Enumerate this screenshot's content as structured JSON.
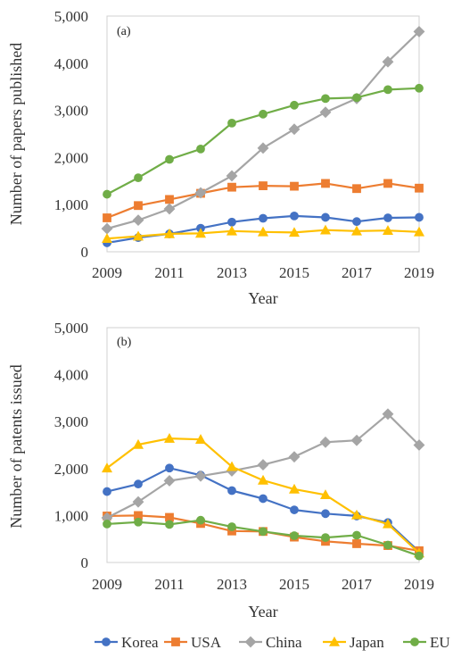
{
  "chart_data": [
    {
      "type": "line",
      "panel_label": "(a)",
      "xlabel": "Year",
      "ylabel": "Number of papers published",
      "x": [
        2009,
        2010,
        2011,
        2012,
        2013,
        2014,
        2015,
        2016,
        2017,
        2018,
        2019
      ],
      "x_ticks": [
        "2009",
        "2011",
        "2013",
        "2015",
        "2017",
        "2019"
      ],
      "ylim": [
        0,
        5000
      ],
      "y_ticks": [
        "0",
        "1,000",
        "2,000",
        "3,000",
        "4,000",
        "5,000"
      ],
      "y_tick_values": [
        0,
        1000,
        2000,
        3000,
        4000,
        5000
      ],
      "grid": false,
      "series": [
        {
          "name": "Korea",
          "color": "#4472C4",
          "marker": "circle",
          "values": [
            190,
            300,
            380,
            500,
            630,
            710,
            760,
            730,
            640,
            720,
            730
          ]
        },
        {
          "name": "USA",
          "color": "#ED7D31",
          "marker": "square",
          "values": [
            720,
            980,
            1110,
            1240,
            1370,
            1400,
            1390,
            1450,
            1340,
            1450,
            1350
          ]
        },
        {
          "name": "China",
          "color": "#A5A5A5",
          "marker": "diamond",
          "values": [
            490,
            670,
            910,
            1250,
            1610,
            2200,
            2600,
            2960,
            3250,
            4030,
            4670
          ]
        },
        {
          "name": "Japan",
          "color": "#FFC000",
          "marker": "triangle",
          "values": [
            280,
            330,
            380,
            390,
            440,
            420,
            410,
            460,
            440,
            450,
            420
          ]
        },
        {
          "name": "EU",
          "color": "#70AD47",
          "marker": "circle",
          "values": [
            1220,
            1570,
            1960,
            2180,
            2730,
            2920,
            3110,
            3250,
            3270,
            3440,
            3470
          ]
        }
      ]
    },
    {
      "type": "line",
      "panel_label": "(b)",
      "xlabel": "Year",
      "ylabel": "Number of patents issued",
      "x": [
        2009,
        2010,
        2011,
        2012,
        2013,
        2014,
        2015,
        2016,
        2017,
        2018,
        2019
      ],
      "x_ticks": [
        "2009",
        "2011",
        "2013",
        "2015",
        "2017",
        "2019"
      ],
      "ylim": [
        0,
        5000
      ],
      "y_ticks": [
        "0",
        "1,000",
        "2,000",
        "3,000",
        "4,000",
        "5,000"
      ],
      "y_tick_values": [
        0,
        1000,
        2000,
        3000,
        4000,
        5000
      ],
      "grid": false,
      "series": [
        {
          "name": "Korea",
          "color": "#4472C4",
          "marker": "circle",
          "values": [
            1510,
            1670,
            2010,
            1860,
            1530,
            1360,
            1120,
            1040,
            990,
            850,
            230
          ]
        },
        {
          "name": "USA",
          "color": "#ED7D31",
          "marker": "square",
          "values": [
            990,
            1000,
            960,
            830,
            670,
            660,
            540,
            450,
            400,
            360,
            250
          ]
        },
        {
          "name": "China",
          "color": "#A5A5A5",
          "marker": "diamond",
          "values": [
            950,
            1290,
            1740,
            1840,
            1950,
            2080,
            2250,
            2560,
            2600,
            3160,
            2500
          ]
        },
        {
          "name": "Japan",
          "color": "#FFC000",
          "marker": "triangle",
          "values": [
            2010,
            2510,
            2640,
            2620,
            2040,
            1750,
            1560,
            1440,
            1010,
            820,
            200
          ]
        },
        {
          "name": "EU",
          "color": "#70AD47",
          "marker": "circle",
          "values": [
            820,
            860,
            810,
            900,
            760,
            660,
            570,
            530,
            580,
            370,
            140
          ]
        }
      ]
    }
  ],
  "legend": {
    "position": "bottom",
    "entries": [
      {
        "name": "Korea",
        "color": "#4472C4",
        "marker": "circle"
      },
      {
        "name": "USA",
        "color": "#ED7D31",
        "marker": "square"
      },
      {
        "name": "China",
        "color": "#A5A5A5",
        "marker": "diamond"
      },
      {
        "name": "Japan",
        "color": "#FFC000",
        "marker": "triangle"
      },
      {
        "name": "EU",
        "color": "#70AD47",
        "marker": "circle"
      }
    ]
  }
}
